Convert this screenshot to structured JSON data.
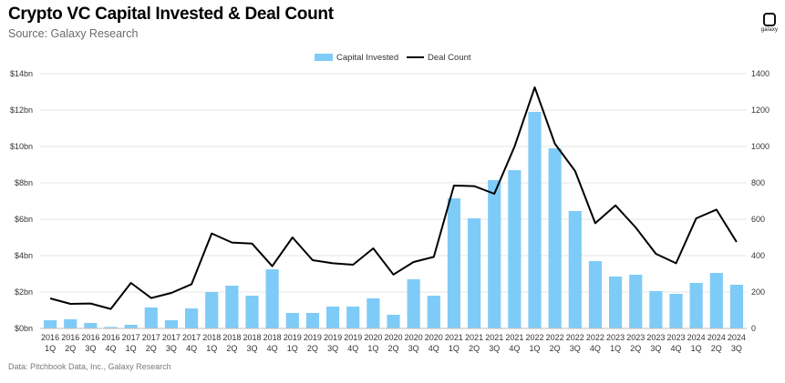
{
  "header": {
    "title": "Crypto VC Capital Invested & Deal Count",
    "subtitle": "Source: Galaxy Research",
    "logo_text": "galaxy"
  },
  "footer": {
    "source": "Data: Pitchbook Data, Inc., Galaxy Research"
  },
  "colors": {
    "bar": "#7fcbf7",
    "line": "#000000",
    "grid": "#e6e6e6"
  },
  "chart_data": {
    "type": "bar",
    "title": "Crypto VC Capital Invested & Deal Count",
    "xlabel": "",
    "ylabel": "",
    "legend_position": "top-center",
    "grid": true,
    "ylim": [
      0,
      14
    ],
    "y2lim": [
      0,
      1400
    ],
    "y_ticks": [
      "$0bn",
      "$2bn",
      "$4bn",
      "$6bn",
      "$8bn",
      "$10bn",
      "$12bn",
      "$14bn"
    ],
    "y2_ticks": [
      "0",
      "200",
      "400",
      "600",
      "800",
      "1000",
      "1200",
      "1400"
    ],
    "categories": [
      [
        "2016",
        "1Q"
      ],
      [
        "2016",
        "2Q"
      ],
      [
        "2016",
        "3Q"
      ],
      [
        "2016",
        "4Q"
      ],
      [
        "2017",
        "1Q"
      ],
      [
        "2017",
        "2Q"
      ],
      [
        "2017",
        "3Q"
      ],
      [
        "2017",
        "4Q"
      ],
      [
        "2018",
        "1Q"
      ],
      [
        "2018",
        "2Q"
      ],
      [
        "2018",
        "3Q"
      ],
      [
        "2018",
        "4Q"
      ],
      [
        "2019",
        "1Q"
      ],
      [
        "2019",
        "2Q"
      ],
      [
        "2019",
        "3Q"
      ],
      [
        "2019",
        "4Q"
      ],
      [
        "2020",
        "1Q"
      ],
      [
        "2020",
        "2Q"
      ],
      [
        "2020",
        "3Q"
      ],
      [
        "2020",
        "4Q"
      ],
      [
        "2021",
        "1Q"
      ],
      [
        "2021",
        "2Q"
      ],
      [
        "2021",
        "3Q"
      ],
      [
        "2021",
        "4Q"
      ],
      [
        "2022",
        "1Q"
      ],
      [
        "2022",
        "2Q"
      ],
      [
        "2022",
        "3Q"
      ],
      [
        "2022",
        "4Q"
      ],
      [
        "2023",
        "1Q"
      ],
      [
        "2023",
        "2Q"
      ],
      [
        "2023",
        "3Q"
      ],
      [
        "2023",
        "4Q"
      ],
      [
        "2024",
        "1Q"
      ],
      [
        "2024",
        "2Q"
      ],
      [
        "2024",
        "3Q"
      ]
    ],
    "series": [
      {
        "name": "Capital Invested",
        "type": "bar",
        "axis": "left",
        "values": [
          0.45,
          0.5,
          0.3,
          0.08,
          0.2,
          1.15,
          0.45,
          1.1,
          2.0,
          2.35,
          1.8,
          3.25,
          0.85,
          0.85,
          1.2,
          1.2,
          1.65,
          0.75,
          2.7,
          1.8,
          7.15,
          6.05,
          8.15,
          8.7,
          11.9,
          9.9,
          6.45,
          3.7,
          2.85,
          2.95,
          2.05,
          1.9,
          2.5,
          3.05,
          2.4
        ]
      },
      {
        "name": "Deal Count",
        "type": "line",
        "axis": "right",
        "values": [
          165,
          135,
          137,
          107,
          250,
          167,
          195,
          243,
          522,
          472,
          466,
          342,
          500,
          375,
          358,
          350,
          440,
          296,
          365,
          393,
          785,
          782,
          740,
          1000,
          1325,
          1015,
          865,
          578,
          676,
          555,
          410,
          358,
          605,
          653,
          475
        ]
      }
    ]
  }
}
